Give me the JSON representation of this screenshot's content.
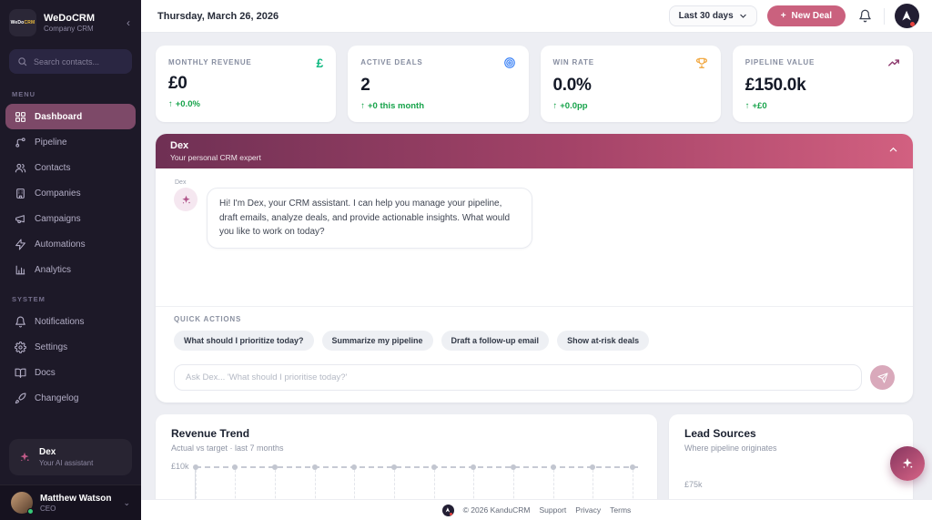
{
  "colors": {
    "sidebar_bg": "#1d1928",
    "active_nav": "#7d4968",
    "brand_rose": "#ca617e",
    "dex_gradient_start": "#6f3054",
    "dex_gradient_end": "#d26080",
    "positive_green": "#16a34a",
    "main_bg": "#edeef3"
  },
  "sidebar": {
    "logo": {
      "part1": "WeDo",
      "part2": "CRM"
    },
    "app_name": "WeDoCRM",
    "app_subtitle": "Company CRM",
    "search_placeholder": "Search contacts...",
    "menu_label": "MENU",
    "menu_items": [
      {
        "label": "Dashboard",
        "icon": "grid",
        "active": true
      },
      {
        "label": "Pipeline",
        "icon": "pipeline",
        "active": false
      },
      {
        "label": "Contacts",
        "icon": "users",
        "active": false
      },
      {
        "label": "Companies",
        "icon": "building",
        "active": false
      },
      {
        "label": "Campaigns",
        "icon": "megaphone",
        "active": false
      },
      {
        "label": "Automations",
        "icon": "zap",
        "active": false
      },
      {
        "label": "Analytics",
        "icon": "bar-chart",
        "active": false
      }
    ],
    "system_label": "SYSTEM",
    "system_items": [
      {
        "label": "Notifications",
        "icon": "bell",
        "active": false
      },
      {
        "label": "Settings",
        "icon": "gear",
        "active": false
      },
      {
        "label": "Docs",
        "icon": "book",
        "active": false
      },
      {
        "label": "Changelog",
        "icon": "rocket",
        "active": false
      }
    ],
    "dex_card": {
      "title": "Dex",
      "subtitle": "Your AI assistant"
    },
    "user": {
      "name": "Matthew Watson",
      "role": "CEO"
    }
  },
  "topbar": {
    "date": "Thursday, March 26, 2026",
    "range_button_label": "Last 30 days",
    "new_deal_label": "New Deal"
  },
  "stats": [
    {
      "label": "MONTHLY REVENUE",
      "value": "£0",
      "delta": "+0.0%",
      "direction": "up",
      "icon": "pound-icon",
      "icon_color": "#10b981"
    },
    {
      "label": "ACTIVE DEALS",
      "value": "2",
      "delta": "+0 this month",
      "direction": "up",
      "icon": "target-icon",
      "icon_color": "#3b82f6"
    },
    {
      "label": "WIN RATE",
      "value": "0.0%",
      "delta": "+0.0pp",
      "direction": "up",
      "icon": "trophy-icon",
      "icon_color": "#f0a030"
    },
    {
      "label": "PIPELINE VALUE",
      "value": "£150.0k",
      "delta": "+£0",
      "direction": "up",
      "icon": "trend-up-icon",
      "icon_color": "#8e3a6e"
    }
  ],
  "dex_panel": {
    "title": "Dex",
    "subtitle": "Your personal CRM expert",
    "sender": "Dex",
    "message": "Hi! I'm Dex, your CRM assistant. I can help you manage your pipeline, draft emails, analyze deals, and provide actionable insights. What would you like to work on today?",
    "quick_actions_label": "QUICK ACTIONS",
    "quick_actions": [
      "What should I prioritize today?",
      "Summarize my pipeline",
      "Draft a follow-up email",
      "Show at-risk deals"
    ],
    "input_placeholder": "Ask Dex... 'What should I prioritise today?'"
  },
  "revenue_trend": {
    "title": "Revenue Trend",
    "subtitle": "Actual vs target · last 7 months",
    "y_tick": "£10k"
  },
  "lead_sources": {
    "title": "Lead Sources",
    "subtitle": "Where pipeline originates",
    "clipped_label": "£75k"
  },
  "chart_data": [
    {
      "type": "line",
      "title": "Revenue Trend",
      "subtitle": "Actual vs target · last 7 months",
      "series": [
        {
          "name": "Target",
          "style": "dashed-with-markers",
          "values": [
            10000,
            10000,
            10000,
            10000,
            10000,
            10000,
            10000
          ]
        }
      ],
      "y_ticks_visible": [
        "£10k"
      ],
      "visible_marker_count": 12,
      "note_visibility": "chart area clipped at bottom of viewport; only target line at £10k visible"
    },
    {
      "type": "bar",
      "title": "Lead Sources",
      "subtitle": "Where pipeline originates",
      "note_visibility": "chart clipped at bottom of viewport; only top sliver of first label visible"
    }
  ],
  "footer": {
    "copyright": "© 2026 KanduCRM",
    "links": [
      "Support",
      "Privacy",
      "Terms"
    ]
  }
}
